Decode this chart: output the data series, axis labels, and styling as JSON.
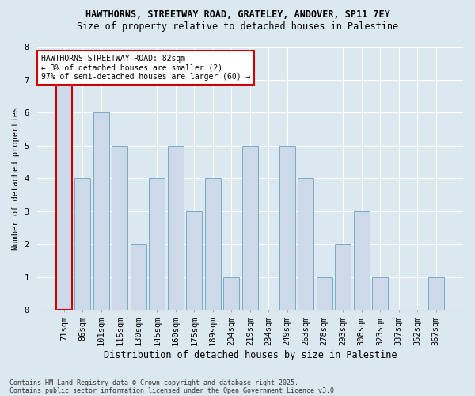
{
  "title1": "HAWTHORNS, STREETWAY ROAD, GRATELEY, ANDOVER, SP11 7EY",
  "title2": "Size of property relative to detached houses in Palestine",
  "xlabel": "Distribution of detached houses by size in Palestine",
  "ylabel": "Number of detached properties",
  "categories": [
    "71sqm",
    "86sqm",
    "101sqm",
    "115sqm",
    "130sqm",
    "145sqm",
    "160sqm",
    "175sqm",
    "189sqm",
    "204sqm",
    "219sqm",
    "234sqm",
    "249sqm",
    "263sqm",
    "278sqm",
    "293sqm",
    "308sqm",
    "323sqm",
    "337sqm",
    "352sqm",
    "367sqm"
  ],
  "values": [
    7,
    4,
    6,
    5,
    2,
    4,
    5,
    3,
    4,
    1,
    5,
    0,
    5,
    4,
    1,
    2,
    3,
    1,
    0,
    0,
    1
  ],
  "bar_color": "#ccd9e8",
  "bar_edge_color": "#7aaac8",
  "highlight_index": 0,
  "highlight_edge_color": "#cc0000",
  "annotation_text": "HAWTHORNS STREETWAY ROAD: 82sqm\n← 3% of detached houses are smaller (2)\n97% of semi-detached houses are larger (60) →",
  "annotation_box_edge": "#cc0000",
  "annotation_bg": "#ffffff",
  "background_color": "#dce8f0",
  "plot_bg_color": "#dce8f0",
  "grid_color": "#ffffff",
  "ylim": [
    0,
    8
  ],
  "yticks": [
    0,
    1,
    2,
    3,
    4,
    5,
    6,
    7,
    8
  ],
  "title1_fontsize": 8.5,
  "title2_fontsize": 8.5,
  "xlabel_fontsize": 8.5,
  "ylabel_fontsize": 7.5,
  "tick_fontsize": 7.5,
  "annot_fontsize": 7,
  "footer1": "Contains HM Land Registry data © Crown copyright and database right 2025.",
  "footer2": "Contains public sector information licensed under the Open Government Licence v3.0.",
  "footer_fontsize": 6
}
